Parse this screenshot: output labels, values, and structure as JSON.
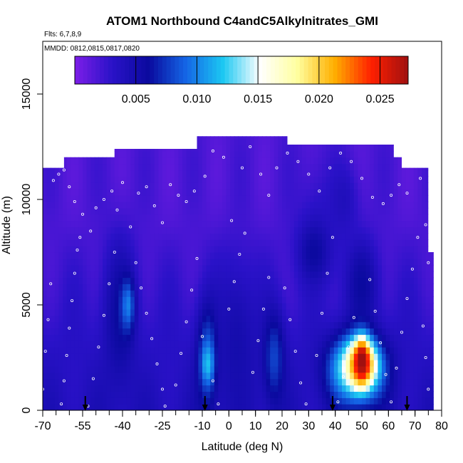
{
  "chart_data": {
    "type": "heatmap",
    "title": "ATOM1 Northbound C4andC5Alkylnitrates_GMI",
    "subtitle_flights": "Flts: 6,7,8,9",
    "subtitle_dates": "MMDD: 0812,0815,0817,0820",
    "xlabel": "Latitude (deg N)",
    "ylabel": "Altitude (m)",
    "xlim": [
      -70,
      80
    ],
    "ylim": [
      0,
      17500
    ],
    "x_ticks": [
      "-70",
      "-55",
      "-40",
      "-25",
      "-10",
      "0",
      "10",
      "20",
      "30",
      "40",
      "50",
      "60",
      "70",
      "80"
    ],
    "y_ticks": [
      "0",
      "5000",
      "10000",
      "15000"
    ],
    "colorbar": {
      "range": [
        0,
        0.0273
      ],
      "ticks": [
        "0.005",
        "0.010",
        "0.015",
        "0.020",
        "0.025"
      ],
      "colors": [
        "#7d1ee8",
        "#2a12c8",
        "#0a0a9e",
        "#1466e6",
        "#1cc8f2",
        "#ffffff",
        "#ffffa0",
        "#ffb000",
        "#ff2000",
        "#a01010"
      ]
    },
    "model_background": "#7a2ae6",
    "curtain_top_profile": [
      {
        "lat": -70,
        "alt": 11500
      },
      {
        "lat": -62,
        "alt": 11500
      },
      {
        "lat": -62,
        "alt": 12000
      },
      {
        "lat": -43,
        "alt": 12000
      },
      {
        "lat": -43,
        "alt": 12400
      },
      {
        "lat": -12,
        "alt": 12400
      },
      {
        "lat": -12,
        "alt": 13000
      },
      {
        "lat": 22,
        "alt": 13000
      },
      {
        "lat": 22,
        "alt": 12600
      },
      {
        "lat": 62,
        "alt": 12600
      },
      {
        "lat": 62,
        "alt": 12000
      },
      {
        "lat": 65,
        "alt": 12000
      },
      {
        "lat": 65,
        "alt": 11500
      },
      {
        "lat": 75,
        "alt": 11500
      },
      {
        "lat": 75,
        "alt": 7500
      },
      {
        "lat": 77,
        "alt": 7500
      },
      {
        "lat": 77,
        "alt": 0
      }
    ],
    "anomalies": [
      {
        "lat": -41,
        "alt": 4500,
        "rlat": 6,
        "ralt": 3500,
        "value": 0.006
      },
      {
        "lat": -38,
        "alt": 5000,
        "rlat": 2.5,
        "ralt": 1200,
        "value": 0.01
      },
      {
        "lat": -8,
        "alt": 2500,
        "rlat": 4,
        "ralt": 2500,
        "value": 0.009
      },
      {
        "lat": -8,
        "alt": 2200,
        "rlat": 2,
        "ralt": 800,
        "value": 0.012
      },
      {
        "lat": 3,
        "alt": 3000,
        "rlat": 8,
        "ralt": 4000,
        "value": 0.005
      },
      {
        "lat": 17,
        "alt": 2500,
        "rlat": 4,
        "ralt": 2200,
        "value": 0.008
      },
      {
        "lat": 36,
        "alt": 9000,
        "rlat": 12,
        "ralt": 3000,
        "value": 0.003
      },
      {
        "lat": 32,
        "alt": 7500,
        "rlat": 6,
        "ralt": 1500,
        "value": 0.006
      },
      {
        "lat": 43,
        "alt": 10000,
        "rlat": 5,
        "ralt": 1500,
        "value": 0.004
      },
      {
        "lat": 50,
        "alt": 6000,
        "rlat": 6,
        "ralt": 2000,
        "value": 0.006
      },
      {
        "lat": 48,
        "alt": 2000,
        "rlat": 10,
        "ralt": 1600,
        "value": 0.016
      },
      {
        "lat": 50,
        "alt": 2200,
        "rlat": 5,
        "ralt": 1000,
        "value": 0.024
      },
      {
        "lat": 50,
        "alt": 2400,
        "rlat": 2.5,
        "ralt": 900,
        "value": 0.028
      }
    ],
    "flight_track_points": [
      {
        "lat": -66,
        "alt": 10900
      },
      {
        "lat": -64,
        "alt": 11200
      },
      {
        "lat": -62,
        "alt": 11400
      },
      {
        "lat": -60,
        "alt": 10600
      },
      {
        "lat": -58,
        "alt": 9900
      },
      {
        "lat": -55,
        "alt": 9300
      },
      {
        "lat": -52,
        "alt": 8500
      },
      {
        "lat": -50,
        "alt": 9600
      },
      {
        "lat": -47,
        "alt": 10000
      },
      {
        "lat": -44,
        "alt": 10400
      },
      {
        "lat": -42,
        "alt": 9500
      },
      {
        "lat": -40,
        "alt": 10800
      },
      {
        "lat": -37,
        "alt": 8700
      },
      {
        "lat": -34,
        "alt": 10300
      },
      {
        "lat": -31,
        "alt": 10600
      },
      {
        "lat": -28,
        "alt": 9700
      },
      {
        "lat": -25,
        "alt": 8900
      },
      {
        "lat": -22,
        "alt": 10700
      },
      {
        "lat": -19,
        "alt": 10200
      },
      {
        "lat": -16,
        "alt": 9900
      },
      {
        "lat": -13,
        "alt": 10400
      },
      {
        "lat": -9,
        "alt": 11100
      },
      {
        "lat": -6,
        "alt": 12300
      },
      {
        "lat": -2,
        "alt": 12000
      },
      {
        "lat": 1,
        "alt": 9000
      },
      {
        "lat": 5,
        "alt": 11500
      },
      {
        "lat": 8,
        "alt": 12500
      },
      {
        "lat": 12,
        "alt": 11200
      },
      {
        "lat": 15,
        "alt": 10200
      },
      {
        "lat": 18,
        "alt": 11500
      },
      {
        "lat": 22,
        "alt": 12200
      },
      {
        "lat": 26,
        "alt": 11800
      },
      {
        "lat": 30,
        "alt": 11200
      },
      {
        "lat": 34,
        "alt": 10400
      },
      {
        "lat": 38,
        "alt": 11500
      },
      {
        "lat": 42,
        "alt": 12200
      },
      {
        "lat": 46,
        "alt": 11800
      },
      {
        "lat": 50,
        "alt": 11000
      },
      {
        "lat": 54,
        "alt": 10100
      },
      {
        "lat": 58,
        "alt": 9800
      },
      {
        "lat": 61,
        "alt": 10200
      },
      {
        "lat": 64,
        "alt": 10700
      },
      {
        "lat": 67,
        "alt": 10300
      },
      {
        "lat": 70,
        "alt": 11600
      },
      {
        "lat": 72,
        "alt": 11000
      },
      {
        "lat": 74,
        "alt": 8800
      },
      {
        "lat": 75,
        "alt": 7000
      },
      {
        "lat": -56,
        "alt": 8200
      },
      {
        "lat": -57,
        "alt": 7600
      },
      {
        "lat": -58,
        "alt": 6500
      },
      {
        "lat": -59,
        "alt": 5200
      },
      {
        "lat": -60,
        "alt": 3900
      },
      {
        "lat": -61,
        "alt": 2600
      },
      {
        "lat": -62,
        "alt": 1400
      },
      {
        "lat": -63,
        "alt": 300
      },
      {
        "lat": -67,
        "alt": 6000
      },
      {
        "lat": -68,
        "alt": 4300
      },
      {
        "lat": -69,
        "alt": 2800
      },
      {
        "lat": -70,
        "alt": 1000
      },
      {
        "lat": -53,
        "alt": 200
      },
      {
        "lat": -51,
        "alt": 1500
      },
      {
        "lat": -49,
        "alt": 3000
      },
      {
        "lat": -47,
        "alt": 4500
      },
      {
        "lat": -45,
        "alt": 6000
      },
      {
        "lat": -43,
        "alt": 7500
      },
      {
        "lat": -35,
        "alt": 7000
      },
      {
        "lat": -33,
        "alt": 5800
      },
      {
        "lat": -31,
        "alt": 4600
      },
      {
        "lat": -29,
        "alt": 3400
      },
      {
        "lat": -27,
        "alt": 2200
      },
      {
        "lat": -25,
        "alt": 1000
      },
      {
        "lat": -24,
        "alt": 200
      },
      {
        "lat": -20,
        "alt": 1200
      },
      {
        "lat": -18,
        "alt": 2700
      },
      {
        "lat": -16,
        "alt": 4200
      },
      {
        "lat": -14,
        "alt": 5700
      },
      {
        "lat": -12,
        "alt": 7200
      },
      {
        "lat": -10,
        "alt": 3500
      },
      {
        "lat": -6,
        "alt": 1400
      },
      {
        "lat": -4,
        "alt": 300
      },
      {
        "lat": 0,
        "alt": 4800
      },
      {
        "lat": 2,
        "alt": 6100
      },
      {
        "lat": 4,
        "alt": 7400
      },
      {
        "lat": 6,
        "alt": 8400
      },
      {
        "lat": 9,
        "alt": 1800
      },
      {
        "lat": 11,
        "alt": 3300
      },
      {
        "lat": 13,
        "alt": 4800
      },
      {
        "lat": 15,
        "alt": 6300
      },
      {
        "lat": 21,
        "alt": 5800
      },
      {
        "lat": 23,
        "alt": 4300
      },
      {
        "lat": 25,
        "alt": 2800
      },
      {
        "lat": 27,
        "alt": 1300
      },
      {
        "lat": 29,
        "alt": 300
      },
      {
        "lat": 33,
        "alt": 2600
      },
      {
        "lat": 35,
        "alt": 4600
      },
      {
        "lat": 37,
        "alt": 6500
      },
      {
        "lat": 39,
        "alt": 8200
      },
      {
        "lat": 41,
        "alt": 400
      },
      {
        "lat": 43,
        "alt": 1600
      },
      {
        "lat": 45,
        "alt": 3000
      },
      {
        "lat": 47,
        "alt": 4400
      },
      {
        "lat": 53,
        "alt": 6200
      },
      {
        "lat": 55,
        "alt": 4700
      },
      {
        "lat": 57,
        "alt": 3200
      },
      {
        "lat": 59,
        "alt": 1700
      },
      {
        "lat": 61,
        "alt": 400
      },
      {
        "lat": 63,
        "alt": 2000
      },
      {
        "lat": 65,
        "alt": 3700
      },
      {
        "lat": 67,
        "alt": 5300
      },
      {
        "lat": 69,
        "alt": 6700
      },
      {
        "lat": 71,
        "alt": 8200
      },
      {
        "lat": 73,
        "alt": 4000
      },
      {
        "lat": 74,
        "alt": 2500
      },
      {
        "lat": 75,
        "alt": 1000
      }
    ],
    "arrow_markers_lat": [
      -54,
      -9,
      39,
      67
    ]
  }
}
